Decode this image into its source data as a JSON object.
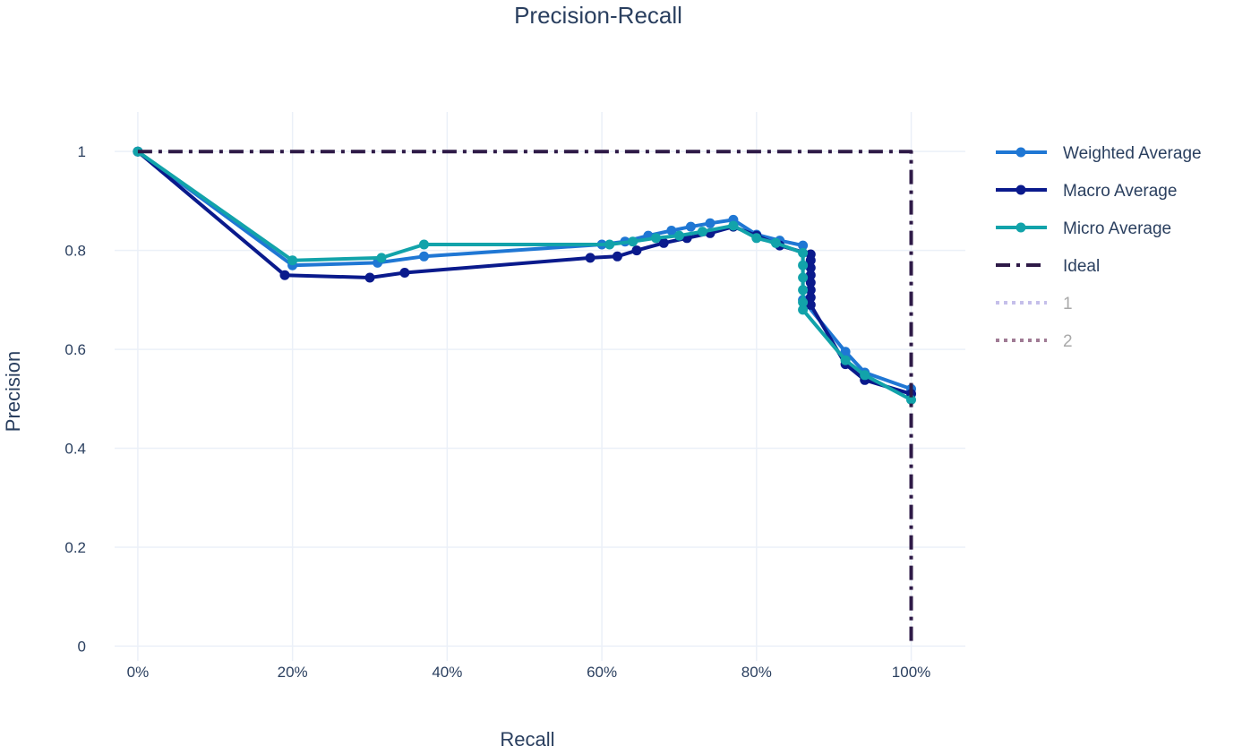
{
  "chart_data": {
    "type": "line",
    "title": "Precision-Recall",
    "xlabel": "Recall",
    "ylabel": "Precision",
    "xlim": [
      -0.03,
      1.07
    ],
    "ylim": [
      -0.03,
      1.08
    ],
    "x_tick_values": [
      0,
      0.2,
      0.4,
      0.6,
      0.8,
      1.0
    ],
    "x_tick_labels": [
      "0%",
      "20%",
      "40%",
      "60%",
      "80%",
      "100%"
    ],
    "y_tick_values": [
      0,
      0.2,
      0.4,
      0.6,
      0.8,
      1.0
    ],
    "y_tick_labels": [
      "0",
      "0.2",
      "0.4",
      "0.6",
      "0.8",
      "1"
    ],
    "grid": true,
    "legend_position": "right",
    "series": [
      {
        "name": "Weighted Average",
        "color": "#1f77d4",
        "dash": "solid",
        "markers": true,
        "points": [
          [
            0.0,
            1.0
          ],
          [
            0.2,
            0.77
          ],
          [
            0.31,
            0.775
          ],
          [
            0.37,
            0.788
          ],
          [
            0.6,
            0.812
          ],
          [
            0.63,
            0.818
          ],
          [
            0.66,
            0.83
          ],
          [
            0.69,
            0.84
          ],
          [
            0.715,
            0.848
          ],
          [
            0.74,
            0.855
          ],
          [
            0.77,
            0.862
          ],
          [
            0.8,
            0.832
          ],
          [
            0.83,
            0.82
          ],
          [
            0.86,
            0.81
          ],
          [
            0.86,
            0.7
          ],
          [
            0.915,
            0.595
          ],
          [
            0.94,
            0.553
          ],
          [
            1.0,
            0.52
          ]
        ]
      },
      {
        "name": "Macro Average",
        "color": "#0a1a8c",
        "dash": "solid",
        "markers": true,
        "points": [
          [
            0.0,
            1.0
          ],
          [
            0.19,
            0.75
          ],
          [
            0.3,
            0.745
          ],
          [
            0.345,
            0.755
          ],
          [
            0.585,
            0.785
          ],
          [
            0.62,
            0.788
          ],
          [
            0.645,
            0.8
          ],
          [
            0.68,
            0.815
          ],
          [
            0.71,
            0.825
          ],
          [
            0.74,
            0.835
          ],
          [
            0.77,
            0.848
          ],
          [
            0.8,
            0.83
          ],
          [
            0.83,
            0.81
          ],
          [
            0.87,
            0.792
          ],
          [
            0.87,
            0.78
          ],
          [
            0.87,
            0.765
          ],
          [
            0.87,
            0.75
          ],
          [
            0.87,
            0.735
          ],
          [
            0.87,
            0.72
          ],
          [
            0.87,
            0.705
          ],
          [
            0.87,
            0.69
          ],
          [
            0.915,
            0.57
          ],
          [
            0.94,
            0.538
          ],
          [
            1.0,
            0.51
          ]
        ]
      },
      {
        "name": "Micro Average",
        "color": "#12a3aa",
        "dash": "solid",
        "markers": true,
        "points": [
          [
            0.0,
            1.0
          ],
          [
            0.2,
            0.78
          ],
          [
            0.315,
            0.785
          ],
          [
            0.37,
            0.812
          ],
          [
            0.61,
            0.812
          ],
          [
            0.64,
            0.818
          ],
          [
            0.67,
            0.825
          ],
          [
            0.7,
            0.83
          ],
          [
            0.73,
            0.838
          ],
          [
            0.77,
            0.85
          ],
          [
            0.8,
            0.825
          ],
          [
            0.825,
            0.815
          ],
          [
            0.86,
            0.795
          ],
          [
            0.86,
            0.77
          ],
          [
            0.86,
            0.745
          ],
          [
            0.86,
            0.72
          ],
          [
            0.86,
            0.695
          ],
          [
            0.86,
            0.68
          ],
          [
            0.915,
            0.578
          ],
          [
            0.94,
            0.548
          ],
          [
            1.0,
            0.498
          ]
        ]
      },
      {
        "name": "Ideal",
        "color": "#2e1a47",
        "dash": "dashdot",
        "markers": false,
        "points": [
          [
            0.0,
            1.0
          ],
          [
            1.0,
            1.0
          ],
          [
            1.0,
            0.0
          ]
        ]
      },
      {
        "name": "1",
        "color": "#c5bfea",
        "dash": "dot",
        "markers": false,
        "legend_only": true,
        "points": []
      },
      {
        "name": "2",
        "color": "#a07b95",
        "dash": "dot",
        "markers": false,
        "legend_only": true,
        "points": []
      }
    ]
  }
}
